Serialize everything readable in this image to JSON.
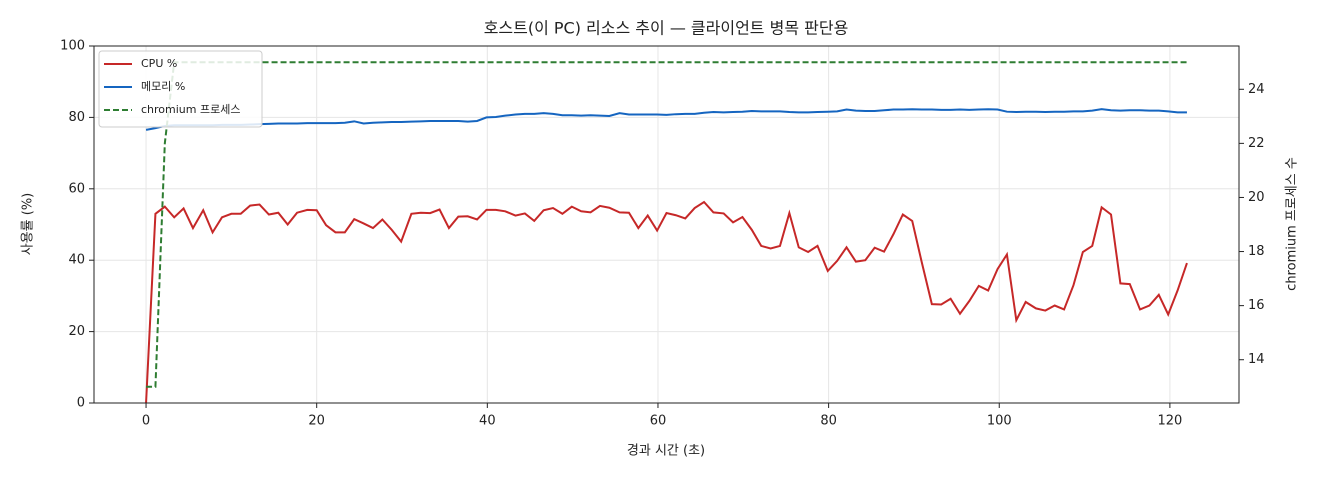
{
  "chart_data": {
    "type": "line",
    "title": "호스트(이 PC) 리소스 추이 — 클라이언트 병목 판단용",
    "x_label": "경과 시간 (초)",
    "y_label": "사용률 (%)",
    "y2_label": "chromium 프로세스 수",
    "xlim": [
      -6.1,
      128.1
    ],
    "xticks": [
      0,
      20,
      40,
      60,
      80,
      100,
      120
    ],
    "ylim": [
      0,
      100
    ],
    "yticks": [
      0,
      20,
      40,
      60,
      80,
      100
    ],
    "y2lim": [
      12.4,
      25.6
    ],
    "y2ticks": [
      14,
      16,
      18,
      20,
      22,
      24
    ],
    "grid": true,
    "legend": "upper-left",
    "x": [
      0,
      1.1,
      2.2,
      3.3,
      4.4,
      5.5,
      6.7,
      7.8,
      8.9,
      10.0,
      11.1,
      12.2,
      13.3,
      14.4,
      15.5,
      16.6,
      17.7,
      18.9,
      20.0,
      21.1,
      22.2,
      23.3,
      24.4,
      25.5,
      26.6,
      27.7,
      28.8,
      29.9,
      31.1,
      32.2,
      33.3,
      34.4,
      35.5,
      36.6,
      37.7,
      38.8,
      39.9,
      41.0,
      42.1,
      43.3,
      44.4,
      45.5,
      46.6,
      47.7,
      48.8,
      49.9,
      51.0,
      52.1,
      53.2,
      54.3,
      55.5,
      56.6,
      57.7,
      58.8,
      59.9,
      61.0,
      62.1,
      63.2,
      64.3,
      65.4,
      66.5,
      67.7,
      68.8,
      69.9,
      71.0,
      72.1,
      73.2,
      74.3,
      75.4,
      76.5,
      77.6,
      78.7,
      79.9,
      81.0,
      82.1,
      83.2,
      84.3,
      85.4,
      86.5,
      87.6,
      88.7,
      89.8,
      90.9,
      92.1,
      93.2,
      94.3,
      95.4,
      96.5,
      97.6,
      98.7,
      99.8,
      100.9,
      102.0,
      103.1,
      104.3,
      105.4,
      106.5,
      107.6,
      108.7,
      109.8,
      110.9,
      112.0,
      113.1,
      114.2,
      115.3,
      116.5,
      117.6,
      118.7,
      119.8,
      120.9,
      122.0
    ],
    "series": [
      {
        "name": "CPU %",
        "color": "#c62828",
        "linestyle": "solid",
        "values": [
          0,
          53,
          55,
          52,
          54.5,
          49,
          54,
          47.8,
          52,
          53,
          53,
          55.3,
          55.6,
          52.8,
          53.3,
          50,
          53.3,
          54.1,
          54,
          49.8,
          47.8,
          47.8,
          51.5,
          50.3,
          49,
          51.4,
          48.5,
          45.2,
          53,
          53.3,
          53.2,
          54.2,
          49,
          52.2,
          52.3,
          51.4,
          54.1,
          54.1,
          53.7,
          52.5,
          53.1,
          51,
          54,
          54.6,
          53,
          55,
          53.7,
          53.4,
          55.2,
          54.7,
          53.4,
          53.3,
          49,
          52.5,
          48.3,
          53.2,
          52.6,
          51.7,
          54.6,
          56.3,
          53.4,
          53.1,
          50.6,
          52.1,
          48.5,
          44,
          43.3,
          44,
          53.2,
          43.6,
          42.3,
          44,
          37,
          39.8,
          43.6,
          39.6,
          40,
          43.5,
          42.4,
          47.3,
          52.8,
          51,
          39.6,
          27.7,
          27.6,
          29.2,
          25,
          28.6,
          32.8,
          31.5,
          37.5,
          41.6,
          23.2,
          28.3,
          26.5,
          25.9,
          27.3,
          26.2,
          33,
          42.3,
          44,
          54.8,
          52.8,
          33.5,
          33.3,
          26.2,
          27.3,
          30.3,
          24.8,
          31.5,
          39.2
        ]
      },
      {
        "name": "메모리 %",
        "color": "#1565c0",
        "linestyle": "solid",
        "values": [
          76.5,
          77,
          77.6,
          77.8,
          77.8,
          77.8,
          77.8,
          77.8,
          77.9,
          77.9,
          77.9,
          78,
          78.1,
          78.2,
          78.3,
          78.3,
          78.3,
          78.4,
          78.4,
          78.4,
          78.4,
          78.5,
          78.9,
          78.3,
          78.5,
          78.6,
          78.7,
          78.7,
          78.8,
          78.9,
          79,
          79,
          79,
          79,
          78.8,
          79,
          80,
          80.1,
          80.5,
          80.8,
          81,
          81,
          81.2,
          81,
          80.6,
          80.6,
          80.5,
          80.6,
          80.5,
          80.4,
          81.2,
          80.8,
          80.8,
          80.8,
          80.8,
          80.7,
          80.9,
          81,
          81,
          81.3,
          81.5,
          81.4,
          81.5,
          81.6,
          81.8,
          81.7,
          81.7,
          81.7,
          81.5,
          81.4,
          81.4,
          81.5,
          81.6,
          81.7,
          82.2,
          81.9,
          81.8,
          81.8,
          82,
          82.2,
          82.2,
          82.3,
          82.2,
          82.2,
          82.1,
          82.1,
          82.2,
          82.1,
          82.2,
          82.3,
          82.2,
          81.6,
          81.5,
          81.6,
          81.6,
          81.5,
          81.6,
          81.6,
          81.7,
          81.7,
          81.9,
          82.3,
          82,
          81.9,
          82,
          82,
          81.9,
          81.9,
          81.7,
          81.4,
          81.4
        ]
      },
      {
        "name": "chromium 프로세스",
        "color": "#2e7d32",
        "linestyle": "dashed",
        "axis": "y2",
        "values": [
          13,
          13,
          22,
          25,
          25,
          25,
          25,
          25,
          25,
          25,
          25,
          25,
          25,
          25,
          25,
          25,
          25,
          25,
          25,
          25,
          25,
          25,
          25,
          25,
          25,
          25,
          25,
          25,
          25,
          25,
          25,
          25,
          25,
          25,
          25,
          25,
          25,
          25,
          25,
          25,
          25,
          25,
          25,
          25,
          25,
          25,
          25,
          25,
          25,
          25,
          25,
          25,
          25,
          25,
          25,
          25,
          25,
          25,
          25,
          25,
          25,
          25,
          25,
          25,
          25,
          25,
          25,
          25,
          25,
          25,
          25,
          25,
          25,
          25,
          25,
          25,
          25,
          25,
          25,
          25,
          25,
          25,
          25,
          25,
          25,
          25,
          25,
          25,
          25,
          25,
          25,
          25,
          25,
          25,
          25,
          25,
          25,
          25,
          25,
          25,
          25,
          25,
          25,
          25,
          25,
          25,
          25,
          25,
          25,
          25,
          25
        ]
      }
    ]
  }
}
